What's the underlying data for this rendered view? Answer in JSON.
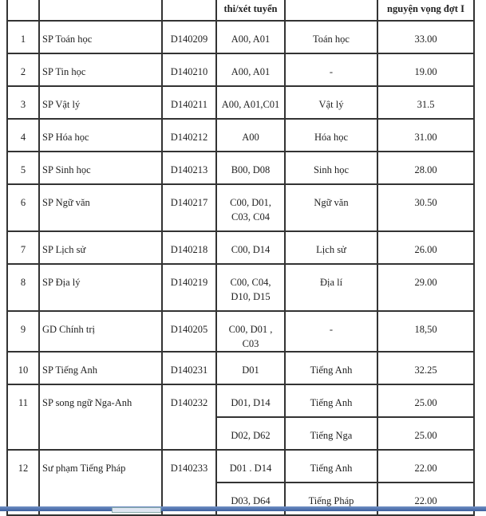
{
  "header": [
    "",
    "",
    "",
    "thi/xét tuyển",
    "",
    "nguyện vọng đợt I"
  ],
  "rows": [
    {
      "stt": "1",
      "name": "SP Toán học",
      "code": "D140209",
      "combos": [
        {
          "combo": "A00, A01",
          "subject": "Toán học",
          "score": "33.00"
        }
      ]
    },
    {
      "stt": "2",
      "name": "SP Tin học",
      "code": "D140210",
      "combos": [
        {
          "combo": "A00, A01",
          "subject": "-",
          "score": "19.00"
        }
      ]
    },
    {
      "stt": "3",
      "name": "SP Vật lý",
      "code": "D140211",
      "combos": [
        {
          "combo": "A00, A01,C01",
          "subject": "Vật lý",
          "score": "31.5"
        }
      ]
    },
    {
      "stt": "4",
      "name": "SP Hóa học",
      "code": "D140212",
      "combos": [
        {
          "combo": "A00",
          "subject": "Hóa học",
          "score": "31.00"
        }
      ]
    },
    {
      "stt": "5",
      "name": "SP Sinh học",
      "code": "D140213",
      "combos": [
        {
          "combo": "B00, D08",
          "subject": "Sinh học",
          "score": "28.00"
        }
      ]
    },
    {
      "stt": "6",
      "name": "SP Ngữ văn",
      "code": "D140217",
      "combos": [
        {
          "combo": "C00, D01, C03, C04",
          "subject": "Ngữ văn",
          "score": "30.50"
        }
      ]
    },
    {
      "stt": "7",
      "name": "SP Lịch sử",
      "code": "D140218",
      "combos": [
        {
          "combo": "C00, D14",
          "subject": "Lịch sử",
          "score": "26.00"
        }
      ]
    },
    {
      "stt": "8",
      "name": "SP Địa lý",
      "code": "D140219",
      "combos": [
        {
          "combo": "C00, C04, D10, D15",
          "subject": "Địa lí",
          "score": "29.00"
        }
      ]
    },
    {
      "stt": "9",
      "name": "GD Chính trị",
      "code": "D140205",
      "combos": [
        {
          "combo": "C00, D01 , C03",
          "subject": "-",
          "score": "18,50"
        }
      ]
    },
    {
      "stt": "10",
      "name": "SP Tiếng Anh",
      "code": "D140231",
      "combos": [
        {
          "combo": "D01",
          "subject": "Tiếng Anh",
          "score": "32.25"
        }
      ]
    },
    {
      "stt": "11",
      "name": "SP song ngữ Nga-Anh",
      "code": "D140232",
      "combos": [
        {
          "combo": "D01, D14",
          "subject": "Tiếng Anh",
          "score": "25.00"
        },
        {
          "combo": "D02, D62",
          "subject": "Tiếng Nga",
          "score": "25.00"
        }
      ]
    },
    {
      "stt": "12",
      "name": "Sư phạm Tiếng Pháp",
      "code": "D140233",
      "combos": [
        {
          "combo": "D01 . D14",
          "subject": "Tiếng Anh",
          "score": "22.00"
        },
        {
          "combo": "D03, D64",
          "subject": "Tiếng Pháp",
          "score": "22.00"
        }
      ]
    }
  ]
}
